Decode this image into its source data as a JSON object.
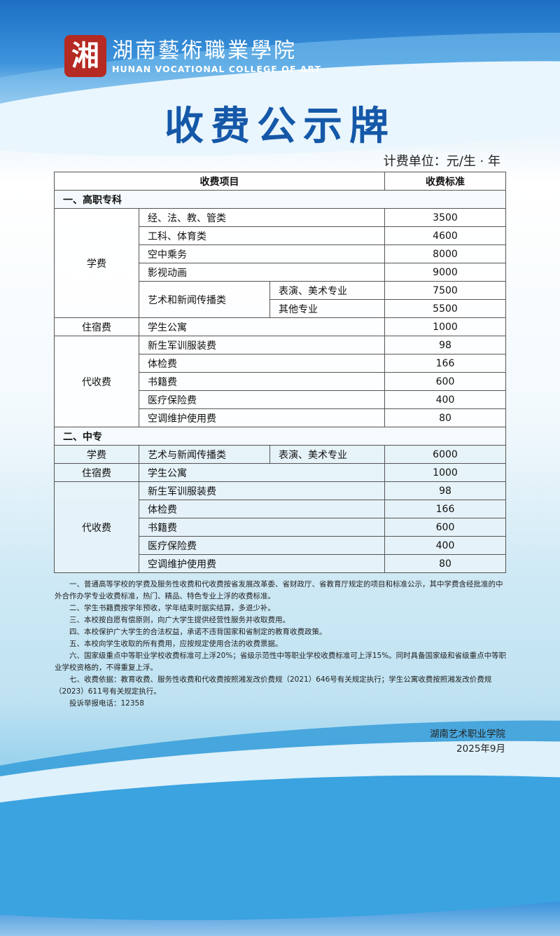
{
  "header": {
    "logo_seal": "湘",
    "logo_cn": "湖南藝術職業學院",
    "logo_en": "HUNAN VOCATIONAL COLLEGE OF ART",
    "title": "收费公示牌",
    "unit": "计费单位：元/生 · 年"
  },
  "table": {
    "headers": [
      "收费项目",
      "收费标准"
    ],
    "sections": [
      {
        "title": "一、高职专科",
        "tuition": {
          "label": "学费",
          "rows": [
            {
              "item": "经、法、教、管类",
              "amount": "3500"
            },
            {
              "item": "工科、体育类",
              "amount": "4600"
            },
            {
              "item": "空中乘务",
              "amount": "8000"
            },
            {
              "item": "影视动画",
              "amount": "9000"
            },
            {
              "item": "艺术和新闻传播类",
              "sub": "表演、美术专业",
              "amount": "7500"
            },
            {
              "item": "艺术和新闻传播类",
              "sub": "其他专业",
              "amount": "5500"
            }
          ]
        },
        "housing": {
          "label": "住宿费",
          "item": "学生公寓",
          "amount": "1000"
        },
        "agency": {
          "label": "代收费",
          "rows": [
            {
              "item": "新生军训服装费",
              "amount": "98"
            },
            {
              "item": "体检费",
              "amount": "166"
            },
            {
              "item": "书籍费",
              "amount": "600"
            },
            {
              "item": "医疗保险费",
              "amount": "400"
            },
            {
              "item": "空调维护使用费",
              "amount": "80"
            }
          ]
        }
      },
      {
        "title": "二、中专",
        "tuition": {
          "label": "学费",
          "item": "艺术与新闻传播类",
          "sub": "表演、美术专业",
          "amount": "6000"
        },
        "housing": {
          "label": "住宿费",
          "item": "学生公寓",
          "amount": "1000"
        },
        "agency": {
          "label": "代收费",
          "rows": [
            {
              "item": "新生军训服装费",
              "amount": "98"
            },
            {
              "item": "体检费",
              "amount": "166"
            },
            {
              "item": "书籍费",
              "amount": "600"
            },
            {
              "item": "医疗保险费",
              "amount": "400"
            },
            {
              "item": "空调维护使用费",
              "amount": "80"
            }
          ]
        }
      }
    ]
  },
  "notes": [
    "一、普通高等学校的学费及服务性收费和代收费按省发展改革委、省财政厅、省教育厅规定的项目和标准公示，其中学费含经批准的中外合作办学专业收费标准，热门、精品、特色专业上浮的收费标准。",
    "二、学生书籍费按学年预收，学年结束时据实结算，多退少补。",
    "三、本校按自愿有偿原则，向广大学生提供经营性服务并收取费用。",
    "四、本校保护广大学生的合法权益，承诺不违背国家和省制定的教育收费政策。",
    "五、本校向学生收取的所有费用，应按规定使用合法的收费票据。",
    "六、国家级重点中等职业学校收费标准可上浮20%；省级示范性中等职业学校收费标准可上浮15%。同时具备国家级和省级重点中等职业学校资格的，不得重复上浮。",
    "七、收费依据：教育收费、服务性收费和代收费按照湘发改价费规（2021）646号有关规定执行；学生公寓收费按照湘发改价费规（2023）611号有关规定执行。",
    "投诉举报电话：12358"
  ],
  "signature": {
    "org": "湖南艺术职业学院",
    "date": "2025年9月"
  }
}
